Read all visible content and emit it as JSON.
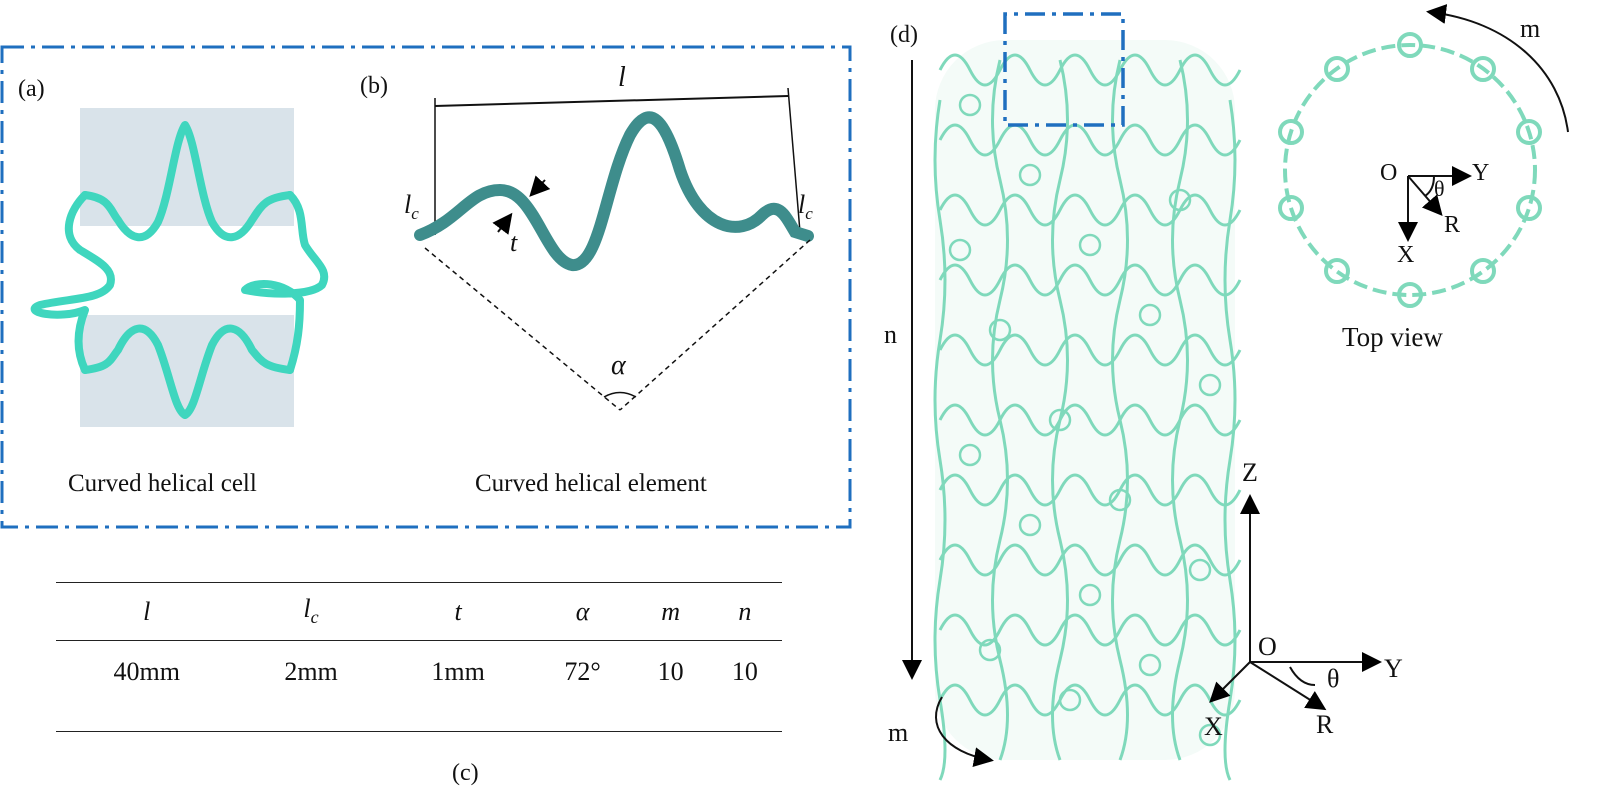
{
  "panels": {
    "a": {
      "label": "(a)",
      "caption": "Curved helical cell"
    },
    "b": {
      "label": "(b)",
      "caption": "Curved helical element",
      "symbols": {
        "l": "l",
        "lc": "l",
        "lc_sub": "c",
        "t": "t",
        "alpha": "α"
      }
    },
    "c": {
      "label": "(c)"
    },
    "d": {
      "label": "(d)",
      "labels": {
        "n": "n",
        "m_bottom": "m",
        "m_top": "m",
        "top_view": "Top view"
      },
      "axes_3d": {
        "z": "Z",
        "o": "O",
        "y": "Y",
        "x": "X",
        "r": "R",
        "theta": "θ"
      },
      "axes_top": {
        "o": "O",
        "y": "Y",
        "x": "X",
        "r": "R",
        "theta": "θ"
      }
    }
  },
  "table": {
    "headers": [
      "l",
      "l",
      "t",
      "α",
      "m",
      "n"
    ],
    "header_sub": "c",
    "values": [
      "40mm",
      "2mm",
      "1mm",
      "72°",
      "10",
      "10"
    ]
  },
  "colors": {
    "frame": "#1f6fbf",
    "cell": "#3fd6be",
    "element": "#3e8d8c",
    "cylinder": "#7fd9bb",
    "highlight": "#d9e3ea"
  }
}
